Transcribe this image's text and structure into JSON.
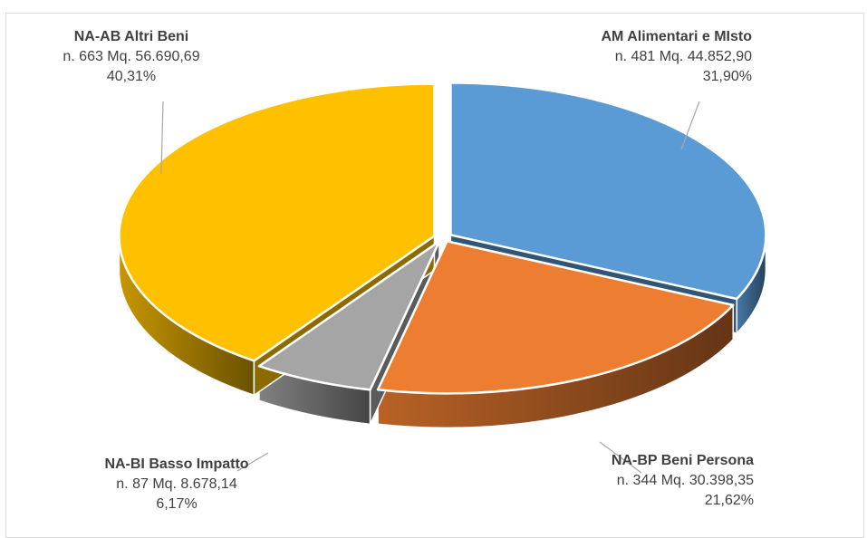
{
  "chart_data": {
    "type": "pie",
    "style": "3d-exploded",
    "title": "",
    "legend": "none",
    "slices": [
      {
        "name": "AM Alimentari e MIsto",
        "count_label": "n. 481 Mq. 44.852,90",
        "percent_label": "31,90%",
        "value": 31.9,
        "color": "#5B9BD5"
      },
      {
        "name": "NA-BP Beni Persona",
        "count_label": "n. 344 Mq. 30.398,35",
        "percent_label": "21,62%",
        "value": 21.62,
        "color": "#ED7D31"
      },
      {
        "name": "NA-BI Basso Impatto",
        "count_label": "n. 87 Mq. 8.678,14",
        "percent_label": "6,17%",
        "value": 6.17,
        "color": "#A5A5A5"
      },
      {
        "name": "NA-AB Altri Beni",
        "count_label": "n. 663 Mq. 56.690,69",
        "percent_label": "40,31%",
        "value": 40.31,
        "color": "#FFC000"
      }
    ]
  }
}
